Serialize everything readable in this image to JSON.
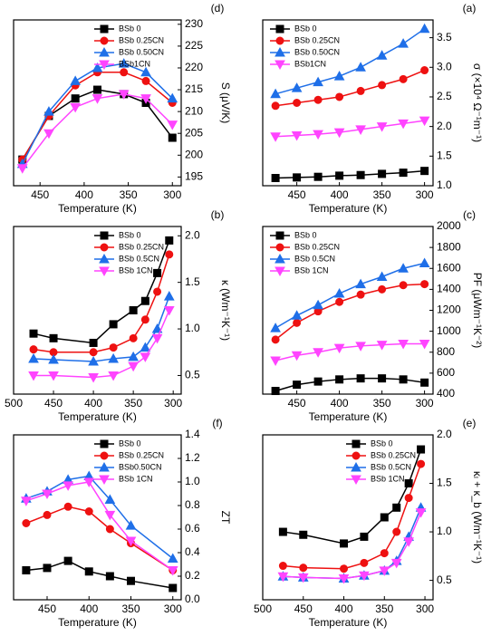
{
  "chart_data": [
    {
      "type": "line",
      "panel_label": "(d)",
      "ylabel": "S (μV/K)",
      "xlabel": "Temperature (K)",
      "x_inverted": true,
      "legend": "upper right",
      "x": [
        300,
        330,
        355,
        385,
        410,
        440,
        470
      ],
      "xlim": [
        290,
        480
      ],
      "xticks": [
        300,
        350,
        400,
        450
      ],
      "ylim": [
        193,
        231
      ],
      "yticks": [
        195,
        200,
        205,
        210,
        215,
        220,
        225,
        230
      ],
      "series": [
        {
          "name": "BSb 0",
          "color": "#000000",
          "marker": "square",
          "values": [
            204,
            212,
            214,
            215,
            213,
            209,
            199
          ]
        },
        {
          "name": "BSb 0.25CN",
          "color": "#ee1111",
          "marker": "circle",
          "values": [
            212,
            217,
            219,
            219,
            216,
            209,
            199
          ]
        },
        {
          "name": "BSb 0.50CN",
          "color": "#1f6fe8",
          "marker": "triangle-up",
          "values": [
            213,
            219,
            221,
            220,
            217,
            210,
            198
          ]
        },
        {
          "name": "BSb1CN",
          "color": "#ff44ff",
          "marker": "triangle-down",
          "values": [
            207,
            213,
            214,
            213,
            211,
            205,
            197
          ]
        }
      ]
    },
    {
      "type": "line",
      "panel_label": "(a)",
      "ylabel": "σ (×10⁴ Ω⁻¹m⁻¹)",
      "xlabel": "Temperature (K)",
      "x_inverted": true,
      "legend": "upper left",
      "x": [
        300,
        325,
        350,
        375,
        400,
        425,
        450,
        475
      ],
      "xlim": [
        290,
        490
      ],
      "xticks": [
        300,
        350,
        400,
        450
      ],
      "ylim": [
        1.0,
        3.8
      ],
      "yticks": [
        {
          "value": 1,
          "label": "1.0"
        },
        1.5,
        {
          "value": 2,
          "label": "2.0"
        },
        2.5,
        {
          "value": 3,
          "label": "3.0"
        },
        3.5
      ],
      "series": [
        {
          "name": "BSb 0",
          "color": "#000000",
          "marker": "square",
          "values": [
            1.25,
            1.22,
            1.2,
            1.18,
            1.17,
            1.15,
            1.14,
            1.13
          ]
        },
        {
          "name": "BSb 0.25CN",
          "color": "#ee1111",
          "marker": "circle",
          "values": [
            2.95,
            2.8,
            2.7,
            2.6,
            2.5,
            2.45,
            2.4,
            2.35
          ]
        },
        {
          "name": "BSb 0.50CN",
          "color": "#1f6fe8",
          "marker": "triangle-up",
          "values": [
            3.65,
            3.4,
            3.2,
            3.0,
            2.85,
            2.75,
            2.65,
            2.55
          ]
        },
        {
          "name": "BSb1CN",
          "color": "#ff44ff",
          "marker": "triangle-down",
          "values": [
            2.1,
            2.05,
            2.0,
            1.95,
            1.9,
            1.87,
            1.85,
            1.83
          ]
        }
      ]
    },
    {
      "type": "line",
      "panel_label": "(b)",
      "ylabel": "κ (Wm⁻¹K⁻¹)",
      "xlabel": "Temperature (K)",
      "x_inverted": true,
      "legend": "upper right",
      "x": [
        305,
        320,
        335,
        350,
        375,
        400,
        450,
        475
      ],
      "xlim": [
        290,
        500
      ],
      "xticks": [
        300,
        350,
        400,
        450,
        500
      ],
      "ylim": [
        0.3,
        2.1
      ],
      "yticks": [
        0.5,
        {
          "value": 1,
          "label": "1.0"
        },
        1.5,
        {
          "value": 2,
          "label": "2.0"
        }
      ],
      "series": [
        {
          "name": "BSb 0",
          "color": "#000000",
          "marker": "square",
          "values": [
            1.95,
            1.6,
            1.3,
            1.2,
            1.05,
            0.85,
            0.9,
            0.95
          ]
        },
        {
          "name": "BSb 0.25CN",
          "color": "#ee1111",
          "marker": "circle",
          "values": [
            1.8,
            1.4,
            1.1,
            0.9,
            0.8,
            0.75,
            0.75,
            0.78
          ]
        },
        {
          "name": "BSb 0.5CN",
          "color": "#1f6fe8",
          "marker": "triangle-up",
          "values": [
            1.35,
            1.0,
            0.8,
            0.7,
            0.68,
            0.65,
            0.67,
            0.68
          ]
        },
        {
          "name": "BSb 1CN",
          "color": "#ff44ff",
          "marker": "triangle-down",
          "values": [
            1.2,
            0.9,
            0.7,
            0.6,
            0.5,
            0.48,
            0.5,
            0.5
          ]
        }
      ]
    },
    {
      "type": "line",
      "panel_label": "(c)",
      "ylabel": "PF (μWm⁻¹K⁻²)",
      "xlabel": "Temperature (K)",
      "x_inverted": true,
      "legend": "upper left",
      "x": [
        300,
        325,
        350,
        375,
        400,
        425,
        450,
        475
      ],
      "xlim": [
        290,
        490
      ],
      "xticks": [
        300,
        350,
        400,
        450
      ],
      "ylim": [
        400,
        2000
      ],
      "yticks": [
        400,
        600,
        800,
        1000,
        1200,
        1400,
        1600,
        1800,
        2000
      ],
      "series": [
        {
          "name": "BSb 0",
          "color": "#000000",
          "marker": "square",
          "values": [
            510,
            540,
            550,
            550,
            540,
            520,
            490,
            430
          ]
        },
        {
          "name": "BSb 0.25CN",
          "color": "#ee1111",
          "marker": "circle",
          "values": [
            1450,
            1440,
            1400,
            1350,
            1280,
            1190,
            1080,
            920
          ]
        },
        {
          "name": "BSb 0.5CN",
          "color": "#1f6fe8",
          "marker": "triangle-up",
          "values": [
            1650,
            1600,
            1520,
            1450,
            1360,
            1250,
            1150,
            1030
          ]
        },
        {
          "name": "BSb 1CN",
          "color": "#ff44ff",
          "marker": "triangle-down",
          "values": [
            880,
            880,
            870,
            860,
            840,
            800,
            770,
            720
          ]
        }
      ]
    },
    {
      "type": "line",
      "panel_label": "(f)",
      "ylabel": "ZT",
      "xlabel": "Temperature (K)",
      "x_inverted": true,
      "legend": "upper right",
      "x": [
        300,
        350,
        375,
        400,
        425,
        450,
        475
      ],
      "xlim": [
        290,
        490
      ],
      "xticks": [
        300,
        350,
        400,
        450
      ],
      "ylim": [
        0,
        1.4
      ],
      "yticks": [
        {
          "value": 0,
          "label": "0.0"
        },
        0.2,
        0.4,
        0.6,
        0.8,
        {
          "value": 1,
          "label": "1.0"
        },
        1.2,
        1.4
      ],
      "series": [
        {
          "name": "BSb 0",
          "color": "#000000",
          "marker": "square",
          "values": [
            0.1,
            0.16,
            0.2,
            0.24,
            0.33,
            0.27,
            0.25
          ]
        },
        {
          "name": "BSb 0.25CN",
          "color": "#ee1111",
          "marker": "circle",
          "values": [
            0.25,
            0.48,
            0.6,
            0.75,
            0.79,
            0.72,
            0.65
          ]
        },
        {
          "name": "BSb0.50CN",
          "color": "#1f6fe8",
          "marker": "triangle-up",
          "values": [
            0.35,
            0.63,
            0.85,
            1.05,
            1.02,
            0.92,
            0.86
          ]
        },
        {
          "name": "BSb 1CN",
          "color": "#ff44ff",
          "marker": "triangle-down",
          "values": [
            0.25,
            0.5,
            0.72,
            1.0,
            0.97,
            0.9,
            0.84
          ]
        }
      ]
    },
    {
      "type": "line",
      "panel_label": "(e)",
      "ylabel": "κₗ + κ_b (Wm⁻¹K⁻¹)",
      "xlabel": "Temperature (K)",
      "x_inverted": true,
      "legend": "upper right",
      "x": [
        305,
        320,
        335,
        350,
        375,
        400,
        450,
        475
      ],
      "xlim": [
        290,
        500
      ],
      "xticks": [
        300,
        350,
        400,
        450,
        500
      ],
      "ylim": [
        0.3,
        2.0
      ],
      "yticks": [
        0.5,
        {
          "value": 1,
          "label": "1.0"
        },
        1.5,
        {
          "value": 2,
          "label": "2.0"
        }
      ],
      "series": [
        {
          "name": "BSb 0",
          "color": "#000000",
          "marker": "square",
          "values": [
            1.85,
            1.5,
            1.25,
            1.15,
            0.95,
            0.88,
            0.97,
            1.0
          ]
        },
        {
          "name": "BSb 0.25CN",
          "color": "#ee1111",
          "marker": "circle",
          "values": [
            1.7,
            1.35,
            1.0,
            0.78,
            0.68,
            0.62,
            0.63,
            0.65
          ]
        },
        {
          "name": "BSb 0.5CN",
          "color": "#1f6fe8",
          "marker": "triangle-up",
          "values": [
            1.25,
            0.95,
            0.7,
            0.6,
            0.55,
            0.52,
            0.53,
            0.54
          ]
        },
        {
          "name": "BSb 1CN",
          "color": "#ff44ff",
          "marker": "triangle-down",
          "values": [
            1.2,
            0.9,
            0.68,
            0.6,
            0.55,
            0.52,
            0.53,
            0.54
          ]
        }
      ]
    }
  ]
}
